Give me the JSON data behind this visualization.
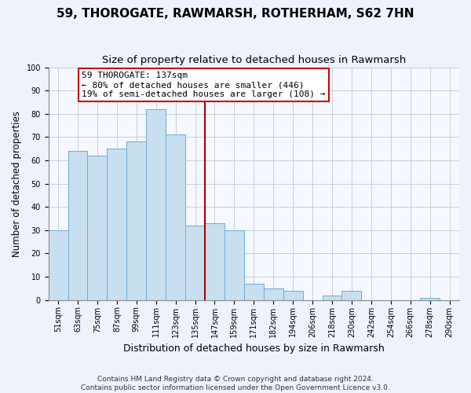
{
  "title": "59, THOROGATE, RAWMARSH, ROTHERHAM, S62 7HN",
  "subtitle": "Size of property relative to detached houses in Rawmarsh",
  "xlabel": "Distribution of detached houses by size in Rawmarsh",
  "ylabel": "Number of detached properties",
  "bar_labels": [
    "51sqm",
    "63sqm",
    "75sqm",
    "87sqm",
    "99sqm",
    "111sqm",
    "123sqm",
    "135sqm",
    "147sqm",
    "159sqm",
    "171sqm",
    "182sqm",
    "194sqm",
    "206sqm",
    "218sqm",
    "230sqm",
    "242sqm",
    "254sqm",
    "266sqm",
    "278sqm",
    "290sqm"
  ],
  "bar_values": [
    30,
    64,
    62,
    65,
    68,
    82,
    71,
    32,
    33,
    30,
    7,
    5,
    4,
    0,
    2,
    4,
    0,
    0,
    0,
    1,
    0
  ],
  "bar_color": "#c8dff0",
  "bar_edge_color": "#6aacd6",
  "vline_index": 7.5,
  "annotation_text_line1": "59 THOROGATE: 137sqm",
  "annotation_text_line2": "← 80% of detached houses are smaller (446)",
  "annotation_text_line3": "19% of semi-detached houses are larger (108) →",
  "annotation_box_color": "#ffffff",
  "annotation_box_edge_color": "#cc0000",
  "vline_color": "#aa0000",
  "ylim": [
    0,
    100
  ],
  "yticks": [
    0,
    10,
    20,
    30,
    40,
    50,
    60,
    70,
    80,
    90,
    100
  ],
  "footnote1": "Contains HM Land Registry data © Crown copyright and database right 2024.",
  "footnote2": "Contains public sector information licensed under the Open Government Licence v3.0.",
  "bg_color": "#eef2fb",
  "plot_bg_color": "#f5f8ff",
  "title_fontsize": 11,
  "subtitle_fontsize": 9.5,
  "xlabel_fontsize": 9,
  "ylabel_fontsize": 8.5,
  "tick_fontsize": 7,
  "footnote_fontsize": 6.5,
  "annotation_fontsize": 8
}
